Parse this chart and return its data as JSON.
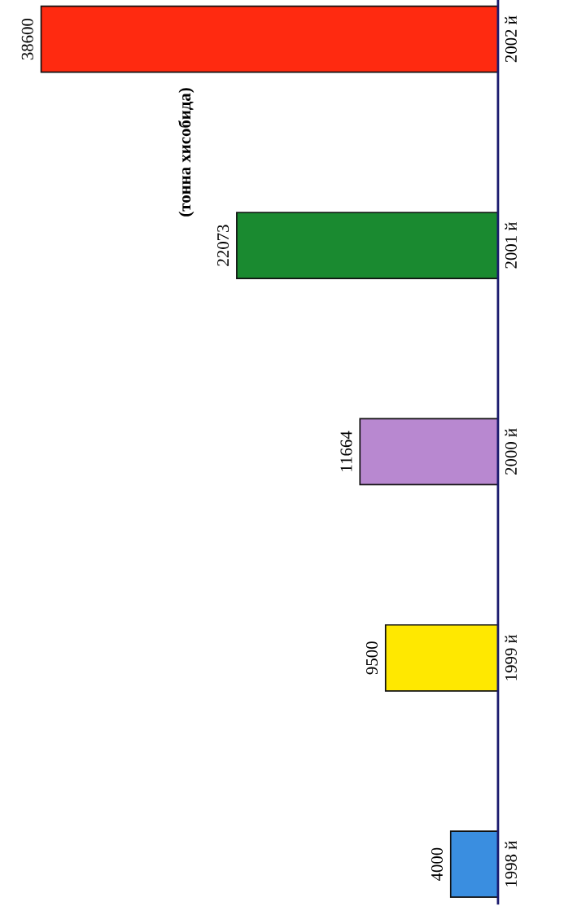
{
  "chart_data": {
    "type": "bar",
    "orientation": "horizontal",
    "title": "(тонна хисобида)",
    "categories": [
      "2002 й",
      "2001 й",
      "2000 й",
      "1999 й",
      "1998 й"
    ],
    "values": [
      38600,
      22073,
      11664,
      9500,
      4000
    ],
    "colors": [
      "#ff2a10",
      "#1a8a30",
      "#b888d0",
      "#ffe800",
      "#3a8ee0"
    ],
    "data_labels": true
  }
}
